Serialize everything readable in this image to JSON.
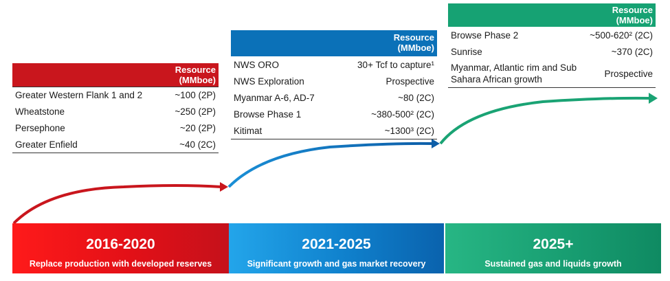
{
  "resource_header": [
    "Resource",
    "(MMboe)"
  ],
  "panels": [
    {
      "color": "#c9161d",
      "rows": [
        {
          "label": "Greater Western Flank 1 and 2",
          "value": "~100 (2P)"
        },
        {
          "label": "Wheatstone",
          "value": "~250 (2P)"
        },
        {
          "label": "Persephone",
          "value": "~20 (2P)"
        },
        {
          "label": "Greater Enfield",
          "value": "~40 (2C)"
        }
      ]
    },
    {
      "color": "#0b71b8",
      "rows": [
        {
          "label": "NWS ORO",
          "value": "30+ Tcf to capture¹"
        },
        {
          "label": "NWS Exploration",
          "value": "Prospective"
        },
        {
          "label": "Myanmar A-6, AD-7",
          "value": "~80 (2C)"
        },
        {
          "label": "Browse Phase 1",
          "value": "~380-500² (2C)"
        },
        {
          "label": "Kitimat",
          "value": "~1300³ (2C)"
        }
      ]
    },
    {
      "color": "#16a273",
      "rows": [
        {
          "label": "Browse Phase 2",
          "value": "~500-620² (2C)"
        },
        {
          "label": "Sunrise",
          "value": "~370 (2C)"
        },
        {
          "label": "Myanmar, Atlantic rim and Sub Sahara African growth",
          "value": "Prospective"
        }
      ]
    }
  ],
  "stages": [
    {
      "period": "2016-2020",
      "description": "Replace production with developed reserves"
    },
    {
      "period": "2021-2025",
      "description": "Significant growth and gas market recovery"
    },
    {
      "period": "2025+",
      "description": "Sustained gas and liquids growth"
    }
  ],
  "arrow_colors": {
    "red": "#c9161d",
    "blue": "#1479c4",
    "green": "#1aa374"
  }
}
